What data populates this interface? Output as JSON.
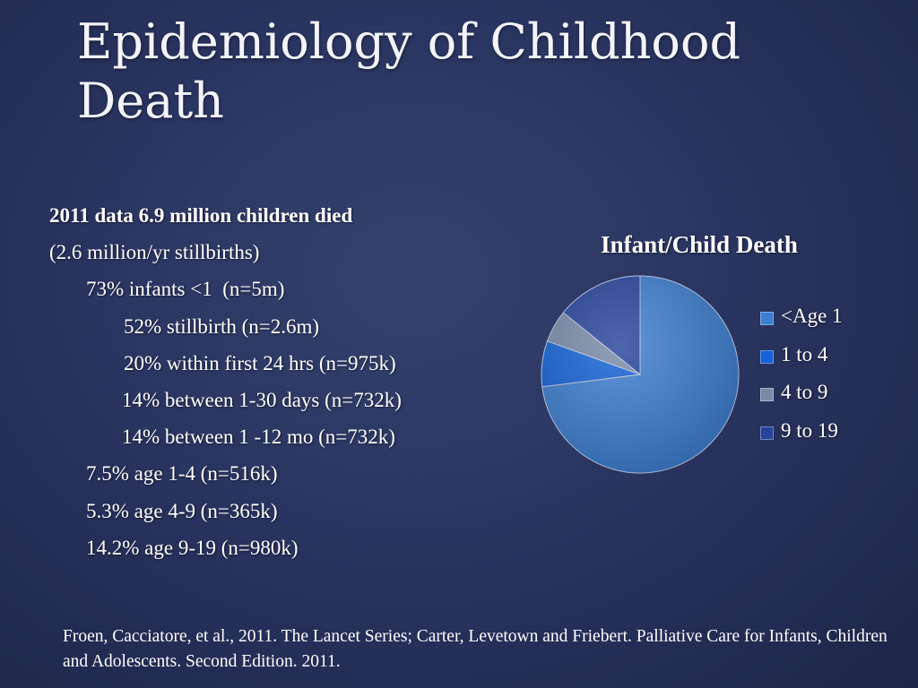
{
  "slide": {
    "title": "Epidemiology of Childhood Death",
    "bullets": [
      "2011 data 6.9 million children died",
      "(2.6 million/yr stillbirths)",
      "73% infants <1  (n=5m)",
      "52% stillbirth (n=2.6m)",
      "20% within first 24 hrs (n=975k)",
      "14% between 1-30 days (n=732k)",
      "14% between 1 -12 mo (n=732k)",
      "7.5% age 1-4 (n=516k)",
      "5.3% age 4-9 (n=365k)",
      "14.2% age 9-19 (n=980k)"
    ],
    "footer": "Froen, Cacciatore, et al., 2011. The Lancet Series; Carter, Levetown and Friebert.  Palliative Care for Infants, Children and Adolescents.  Second Edition.  2011."
  },
  "chart_data": {
    "type": "pie",
    "title": "Infant/Child Death",
    "categories": [
      "<Age 1",
      "1 to 4",
      "4 to 9",
      "9 to 19"
    ],
    "values": [
      73,
      7.5,
      5.3,
      14.2
    ],
    "colors": [
      "#3d7fd0",
      "#1462d6",
      "#7a8aa8",
      "#26449a"
    ],
    "legend": "right"
  }
}
